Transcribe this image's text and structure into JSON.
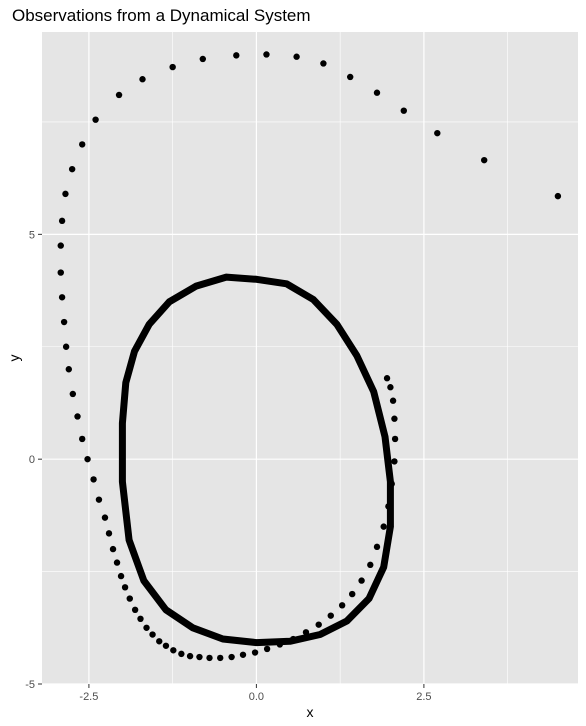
{
  "chart_data": {
    "type": "scatter",
    "title": "Observations from a Dynamical System",
    "xlabel": "x",
    "ylabel": "y",
    "xlim": [
      -3.2,
      4.8
    ],
    "ylim": [
      -5.0,
      9.5
    ],
    "x_ticks": [
      -2.5,
      0.0,
      2.5
    ],
    "x_tick_labels": [
      "-2.5",
      "0.0",
      "2.5"
    ],
    "y_ticks": [
      -5,
      0,
      5
    ],
    "y_tick_labels": [
      "-5",
      "0",
      "5"
    ],
    "grid": true,
    "panel_color": "#e5e5e5",
    "grid_color": "#ffffff",
    "point_color": "#000000",
    "transient": {
      "x": [
        4.5,
        3.4,
        2.7,
        2.2,
        1.8,
        1.4,
        1.0,
        0.6,
        0.15,
        -0.3,
        -0.8,
        -1.25,
        -1.7,
        -2.05,
        -2.4,
        -2.6,
        -2.75,
        -2.85,
        -2.9,
        -2.92,
        -2.92,
        -2.9,
        -2.87,
        -2.84,
        -2.8,
        -2.74,
        -2.67,
        -2.6,
        -2.52,
        -2.43,
        -2.35,
        -2.26,
        -2.2,
        -2.14,
        -2.08,
        -2.02,
        -1.96,
        -1.89,
        -1.81,
        -1.73,
        -1.64,
        -1.55,
        -1.45,
        -1.35,
        -1.24,
        -1.12,
        -0.99,
        -0.85,
        -0.7,
        -0.54,
        -0.37,
        -0.2,
        -0.02,
        0.16,
        0.35,
        0.55,
        0.74,
        0.93,
        1.11,
        1.28,
        1.43,
        1.57,
        1.7,
        1.8,
        1.9,
        1.97,
        2.02,
        2.06,
        2.07,
        2.06,
        2.04,
        2.0,
        1.95
      ],
      "y": [
        5.85,
        6.65,
        7.25,
        7.75,
        8.15,
        8.5,
        8.8,
        8.95,
        9.0,
        8.98,
        8.9,
        8.72,
        8.45,
        8.1,
        7.55,
        7.0,
        6.45,
        5.9,
        5.3,
        4.75,
        4.15,
        3.6,
        3.05,
        2.5,
        2.0,
        1.45,
        0.95,
        0.45,
        0.0,
        -0.45,
        -0.9,
        -1.3,
        -1.65,
        -2.0,
        -2.3,
        -2.6,
        -2.85,
        -3.1,
        -3.35,
        -3.55,
        -3.75,
        -3.9,
        -4.05,
        -4.15,
        -4.25,
        -4.33,
        -4.38,
        -4.4,
        -4.42,
        -4.42,
        -4.4,
        -4.35,
        -4.3,
        -4.22,
        -4.12,
        -4.0,
        -3.85,
        -3.68,
        -3.48,
        -3.25,
        -3.0,
        -2.7,
        -2.35,
        -1.95,
        -1.5,
        -1.05,
        -0.55,
        -0.05,
        0.45,
        0.9,
        1.3,
        1.6,
        1.8
      ]
    },
    "limit_cycle": {
      "x": [
        0.0,
        0.45,
        0.85,
        1.2,
        1.5,
        1.75,
        1.92,
        2.0,
        2.0,
        1.9,
        1.68,
        1.35,
        0.95,
        0.5,
        0.0,
        -0.5,
        -0.95,
        -1.35,
        -1.68,
        -1.9,
        -2.0,
        -2.0,
        -1.95,
        -1.82,
        -1.6,
        -1.3,
        -0.9,
        -0.45,
        0.0
      ],
      "y": [
        4.0,
        3.9,
        3.55,
        3.0,
        2.3,
        1.5,
        0.5,
        -0.5,
        -1.5,
        -2.4,
        -3.1,
        -3.6,
        -3.9,
        -4.05,
        -4.08,
        -4.0,
        -3.75,
        -3.35,
        -2.7,
        -1.8,
        -0.5,
        0.8,
        1.7,
        2.4,
        3.0,
        3.5,
        3.85,
        4.05,
        4.0
      ]
    }
  }
}
